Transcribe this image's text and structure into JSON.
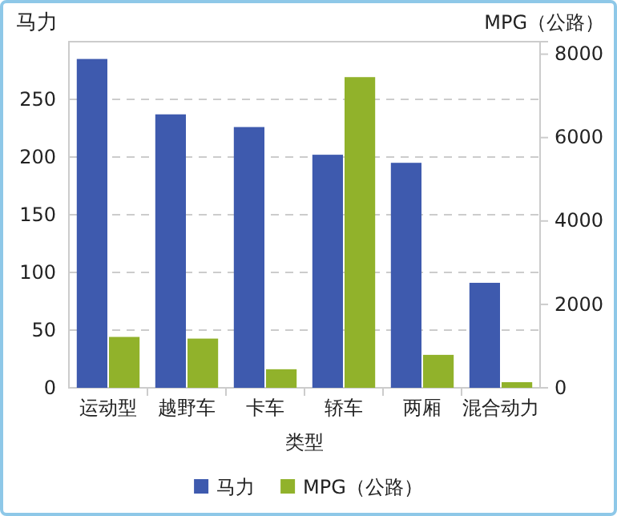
{
  "chart_data": {
    "type": "bar",
    "xlabel": "类型",
    "ylabel": "马力",
    "y2label": "MPG（公路）",
    "categories": [
      "运动型",
      "越野车",
      "卡车",
      "轿车",
      "两厢",
      "混合动力"
    ],
    "series": [
      {
        "name": "马力",
        "color": "#3e5aae",
        "values": [
          285,
          237,
          226,
          202,
          195,
          91
        ]
      },
      {
        "name": "MPG（公路）",
        "color": "#91b22b",
        "axis": "y2",
        "values": [
          1220,
          1180,
          445,
          7450,
          790,
          135
        ]
      }
    ],
    "ylim": [
      0,
      300
    ],
    "yticks": [
      0,
      50,
      100,
      150,
      200,
      250
    ],
    "y2lim": [
      0,
      8300
    ],
    "y2ticks": [
      0,
      2000,
      4000,
      6000,
      8000
    ],
    "grid": "y",
    "legend": "bottom"
  }
}
